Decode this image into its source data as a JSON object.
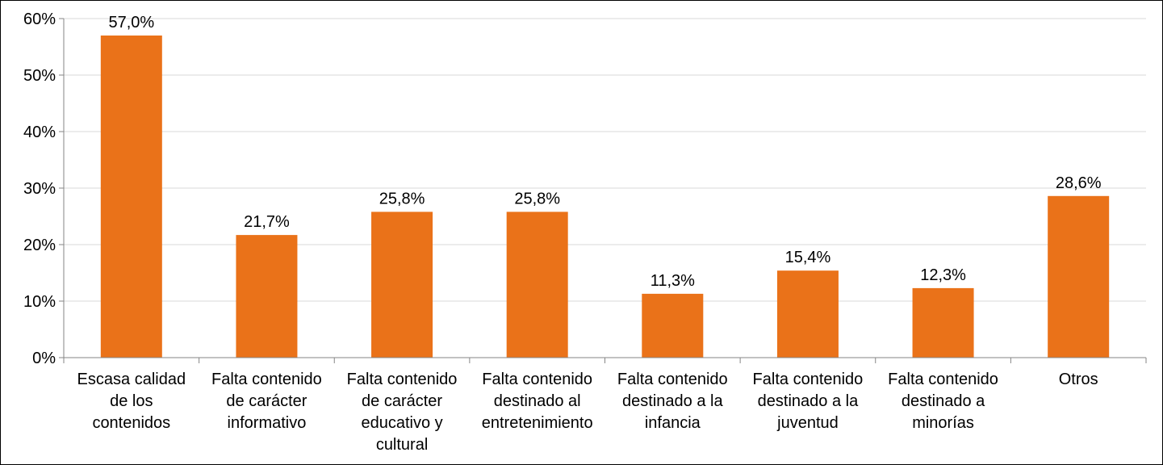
{
  "chart_data": {
    "type": "bar",
    "categories": [
      "Escasa calidad de los contenidos",
      "Falta contenido de carácter informativo",
      "Falta contenido de carácter educativo y cultural",
      "Falta contenido destinado al entretenimiento",
      "Falta contenido destinado a la infancia",
      "Falta contenido destinado a la juventud",
      "Falta contenido destinado a minorías",
      "Otros"
    ],
    "category_lines": [
      [
        "Escasa calidad",
        "de los",
        "contenidos"
      ],
      [
        "Falta contenido",
        "de carácter",
        "informativo"
      ],
      [
        "Falta contenido",
        "de carácter",
        "educativo y",
        "cultural"
      ],
      [
        "Falta contenido",
        "destinado al",
        "entretenimiento"
      ],
      [
        "Falta contenido",
        "destinado a la",
        "infancia"
      ],
      [
        "Falta contenido",
        "destinado a la",
        "juventud"
      ],
      [
        "Falta contenido",
        "destinado a",
        "minorías"
      ],
      [
        "Otros"
      ]
    ],
    "values": [
      57.0,
      21.7,
      25.8,
      25.8,
      11.3,
      15.4,
      12.3,
      28.6
    ],
    "value_labels": [
      "57,0%",
      "21,7%",
      "25,8%",
      "25,8%",
      "11,3%",
      "15,4%",
      "12,3%",
      "28,6%"
    ],
    "yticks": [
      "0%",
      "10%",
      "20%",
      "30%",
      "40%",
      "50%",
      "60%"
    ],
    "ylim": [
      0,
      60
    ],
    "grid": true,
    "title": "",
    "xlabel": "",
    "ylabel": "",
    "colors": {
      "bar": "#ea7219",
      "grid": "#d9d9d9",
      "axis": "#868686",
      "border": "#000000"
    }
  }
}
